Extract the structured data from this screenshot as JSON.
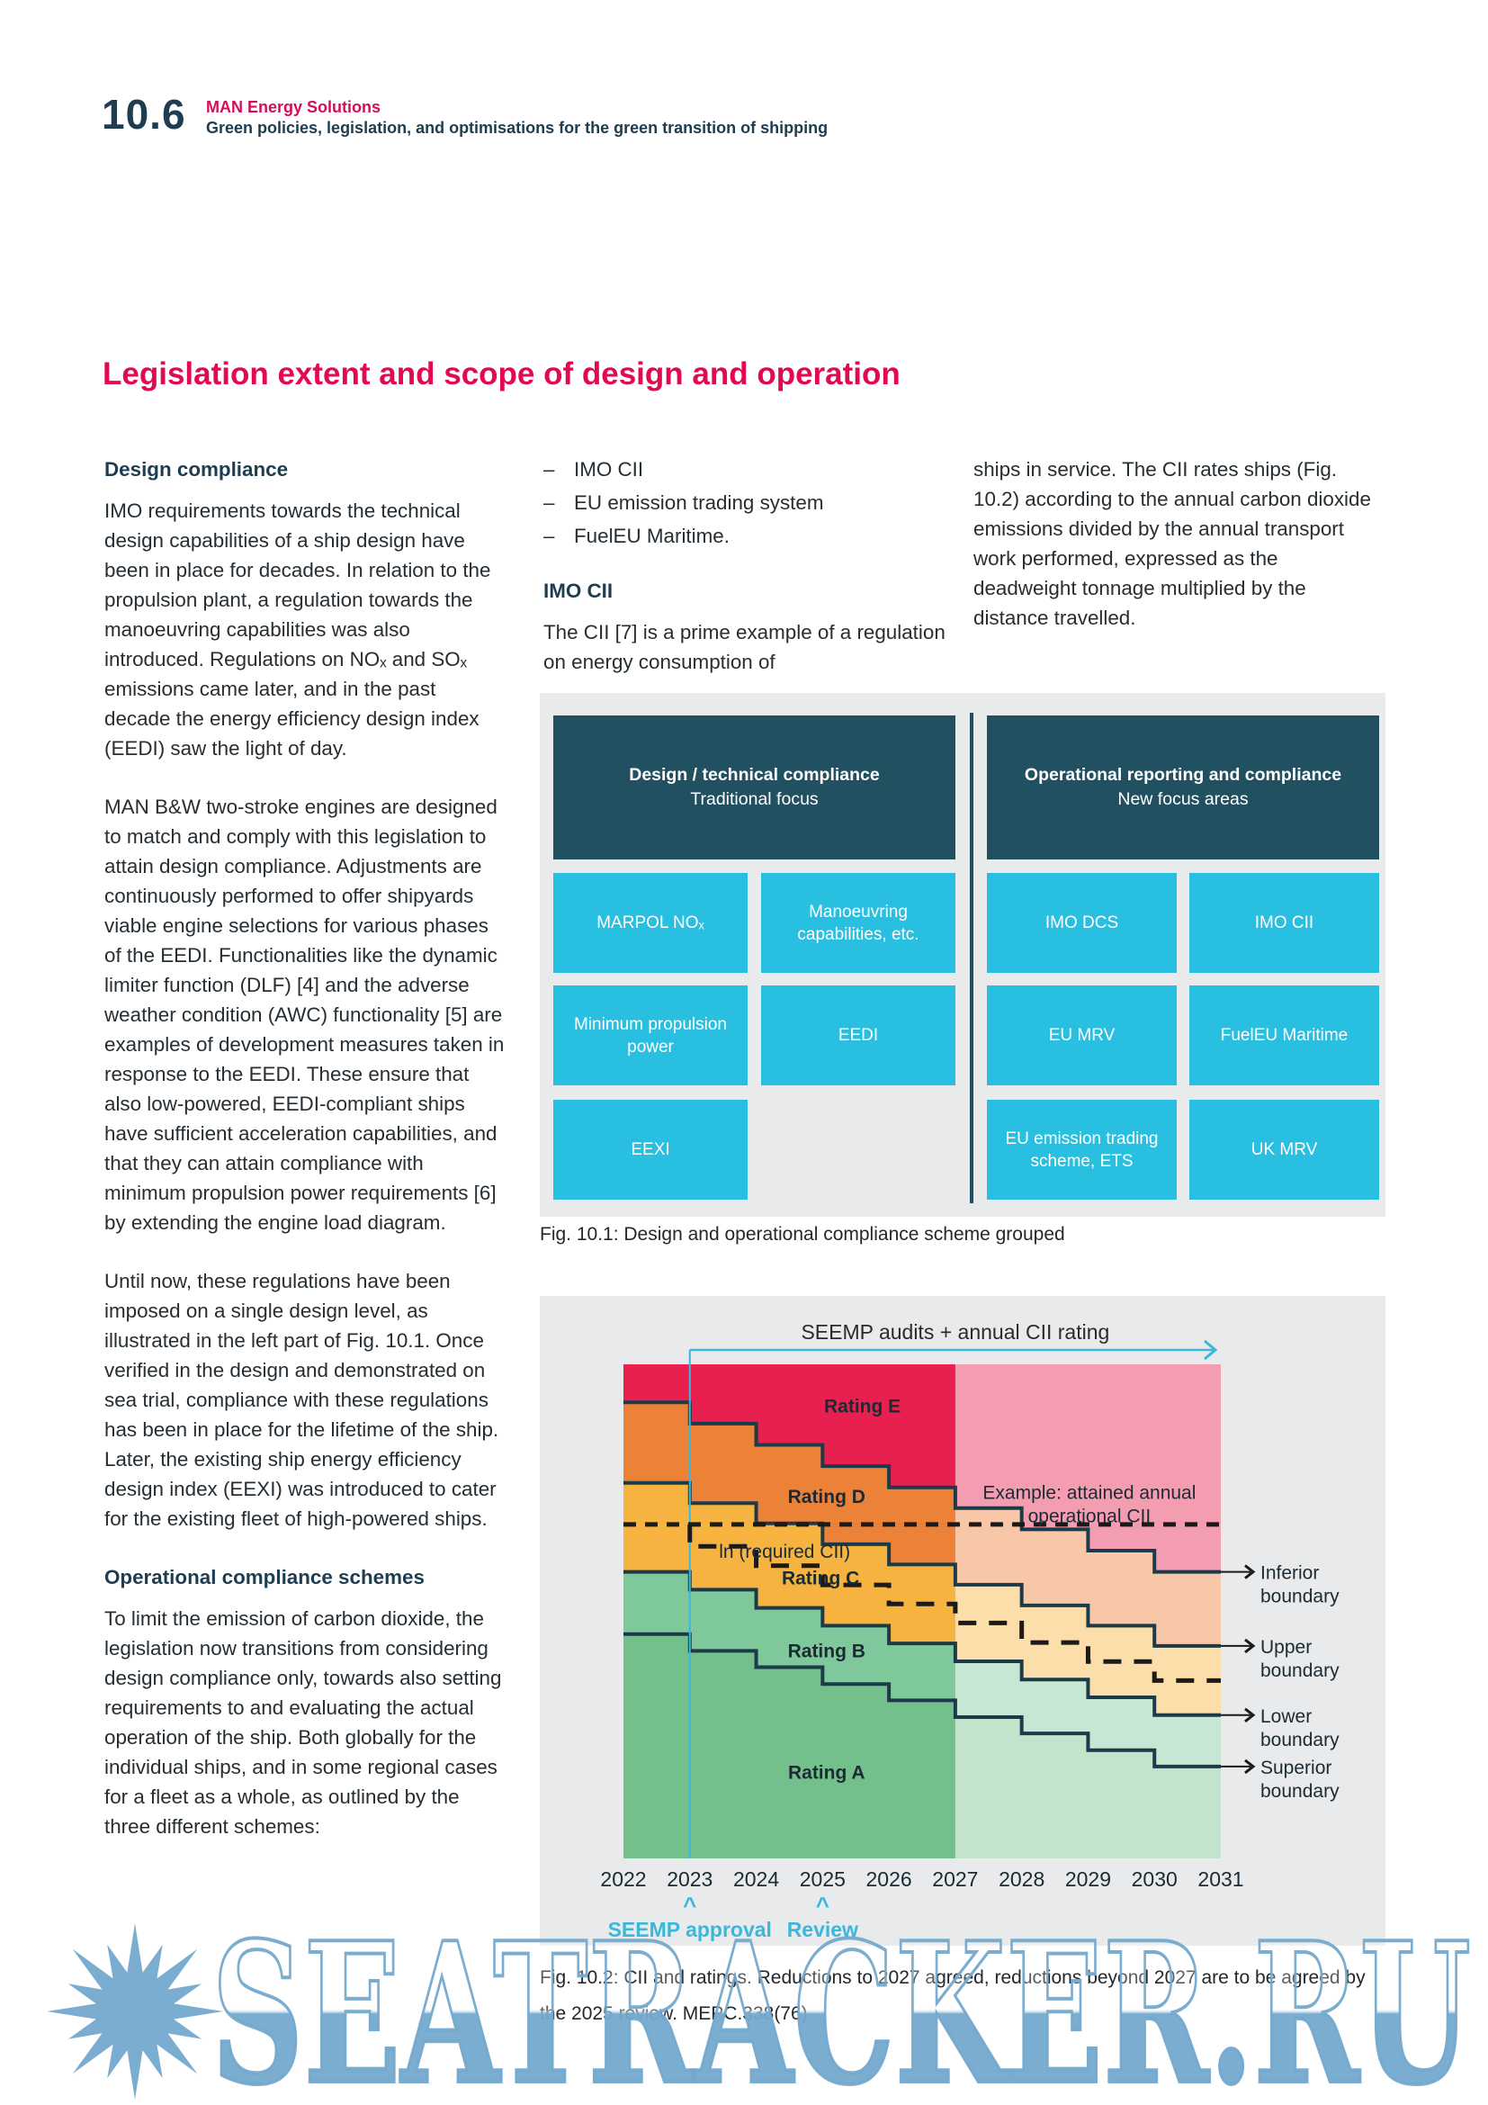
{
  "page": {
    "section_number": "10.6",
    "brand": "MAN Energy Solutions",
    "header_subtitle": "Green policies, legislation, and optimisations for the green transition of shipping",
    "title": "Legislation extent and scope of design and operation"
  },
  "columns": {
    "col1": {
      "heading1": "Design compliance",
      "para1": "IMO requirements towards the technical design capabilities of a ship design have been in place for decades. In relation to the propulsion plant, a regulation towards the manoeuvring capabilities was also introduced. Regulations on NOₓ and SOₓ emissions came later, and in the past decade the energy efficiency design index (EEDI) saw the light of day.",
      "para2": "MAN B&W two-stroke engines are designed to match and comply with this legislation to attain design compliance. Adjustments are continuously performed to offer shipyards viable engine selections for various phases of the EEDI. Functionalities like the dynamic limiter function (DLF) [4] and the adverse weather condition (AWC) functionality [5] are examples of development measures taken in response to the EEDI. These ensure that also low-powered, EEDI-compliant ships have sufficient acceleration capabilities, and that they can attain compliance with minimum propulsion power requirements [6] by extending the engine load diagram.",
      "para3": "Until now, these regulations have been imposed on a single design level, as illustrated in the left part of Fig. 10.1. Once verified in the design and demonstrated on sea trial, compliance with these regulations has been in place for the lifetime of the ship. Later, the existing ship energy efficiency design index (EEXI) was introduced to cater for the existing fleet of high-powered ships.",
      "heading2": "Operational compliance schemes",
      "para4": "To limit the emission of carbon dioxide, the legislation now transitions from considering design compliance only, towards also setting requirements to and evaluating the actual operation of the ship. Both globally for the individual ships, and in some regional cases for a fleet as a whole, as outlined by the three different schemes:"
    },
    "col2": {
      "bullet_dash": "–",
      "bullets": [
        "IMO CII",
        "EU emission trading system",
        "FuelEU Maritime."
      ],
      "heading": "IMO CII",
      "para": "The CII [7] is a prime example of a regulation on energy consumption of"
    },
    "col3": {
      "para": "ships in service. The CII rates ships (Fig. 10.2) according to the annual carbon dioxide emissions divided by the annual transport work performed, expressed as the deadweight tonnage multiplied by the distance travelled."
    }
  },
  "fig1": {
    "caption": "Fig. 10.1: Design and operational compliance scheme grouped",
    "left": {
      "header_bold": "Design / technical compliance",
      "header_sub": "Traditional focus",
      "cells": [
        [
          "MARPOL NOₓ",
          "Manoeuvring capabilities, etc."
        ],
        [
          "Minimum propulsion power",
          "EEDI"
        ],
        [
          "EEXI",
          ""
        ]
      ]
    },
    "right": {
      "header_bold": "Operational reporting and compliance",
      "header_sub": "New focus areas",
      "cells": [
        [
          "IMO DCS",
          "IMO CII"
        ],
        [
          "EU MRV",
          "FuelEU Maritime"
        ],
        [
          "EU emission trading scheme, ETS",
          "UK MRV"
        ]
      ]
    },
    "colors": {
      "header_bg": "#215061",
      "cell_bg": "#29bfe0",
      "panel_bg": "#e9eaeb"
    }
  },
  "chart_data": {
    "type": "area",
    "title": "SEEMP audits + annual CII rating",
    "years": [
      2022,
      2023,
      2024,
      2025,
      2026,
      2027,
      2028,
      2029,
      2030,
      2031
    ],
    "ylabel": "ln (required CII)",
    "bands": [
      {
        "label": "Rating E",
        "color": "#e7204f",
        "faded_color": "#f4a2a6",
        "label_x": 0.4,
        "label_y": 0.085
      },
      {
        "label": "Rating D",
        "color": "#ec8138",
        "faded_color": "#f8cba2",
        "label_x": 0.34,
        "label_y": 0.268
      },
      {
        "label": "Rating C",
        "color": "#f6b33f",
        "faded_color": "#fbe2b0",
        "label_x": 0.33,
        "label_y": 0.433
      },
      {
        "label": "Rating B",
        "color": "#7ec89c",
        "faded_color": "#d0ebdb",
        "label_x": 0.34,
        "label_y": 0.58
      },
      {
        "label": "Rating A",
        "color": "#74c08c",
        "faded_color": "#c6e5d0",
        "label_x": 0.34,
        "label_y": 0.826
      }
    ],
    "boundaries": {
      "inferior": [
        0.077,
        0.12,
        0.163,
        0.206,
        0.249,
        0.291,
        0.334,
        0.377,
        0.42
      ],
      "upper": [
        0.24,
        0.281,
        0.322,
        0.364,
        0.405,
        0.446,
        0.488,
        0.529,
        0.57
      ],
      "lower": [
        0.42,
        0.456,
        0.493,
        0.529,
        0.565,
        0.601,
        0.638,
        0.674,
        0.71
      ],
      "superior": [
        0.546,
        0.58,
        0.613,
        0.647,
        0.68,
        0.714,
        0.747,
        0.781,
        0.814
      ]
    },
    "boundary_labels": [
      "Inferior boundary",
      "Upper boundary",
      "Lower boundary",
      "Superior boundary"
    ],
    "example_line": {
      "level": 0.324,
      "label_lines": [
        "Example: attained annual",
        "operational CII"
      ]
    },
    "required_line_start_year": 2023,
    "fade_from_year": 2027,
    "axis_notes": [
      {
        "year": 2023,
        "label": "SEEMP approval"
      },
      {
        "year": 2025,
        "label": "Review"
      }
    ],
    "caption": "Fig. 10.2: CII and ratings. Reductions to 2027 agreed, reductions beyond 2027 are to be agreed by the 2025 review. MEPC.338(76)",
    "colors": {
      "line": "#1d3a48",
      "cyan": "#3bb7db",
      "dash": "#1a1a1a",
      "panel": "#e9eaeb",
      "text": "#1b2a33"
    }
  },
  "watermark": {
    "text": "SEATRACKER.RU"
  }
}
